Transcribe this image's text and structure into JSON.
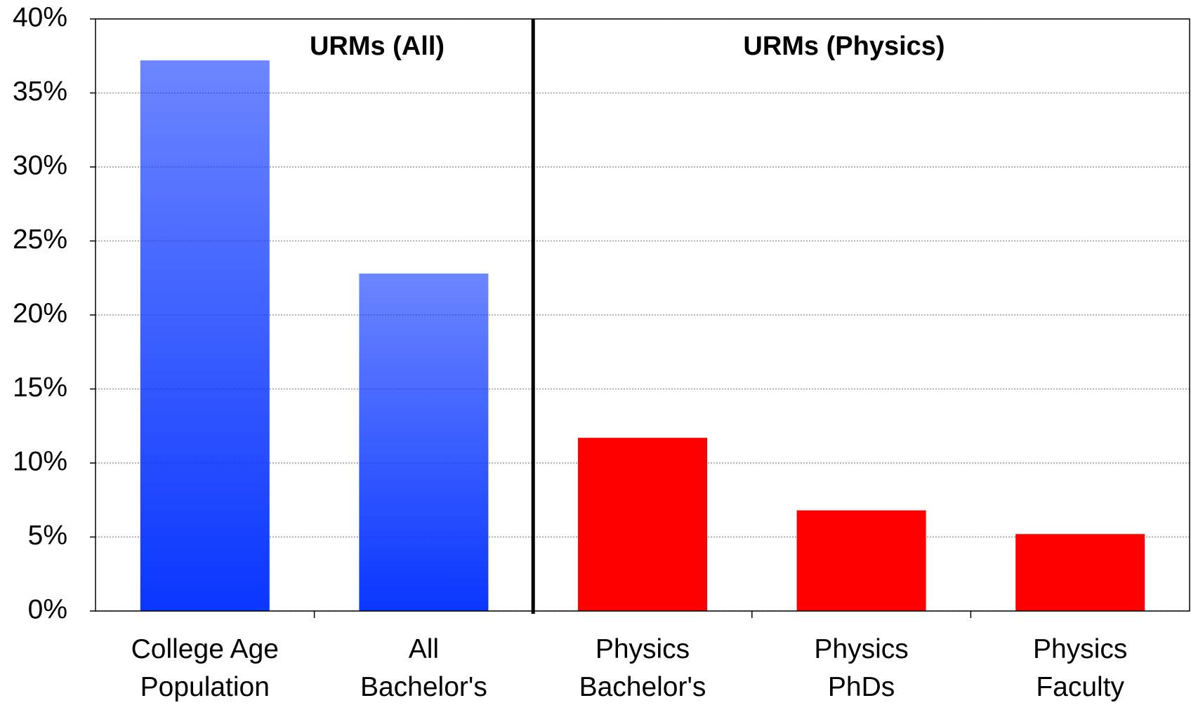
{
  "chart_data": {
    "type": "bar",
    "categories": [
      "College Age\nPopulation",
      "All\nBachelor's",
      "Physics\nBachelor's",
      "Physics\nPhDs",
      "Physics\nFaculty"
    ],
    "values": [
      37.2,
      22.8,
      11.7,
      6.8,
      5.2
    ],
    "colors": [
      "#0a36ff",
      "#0a36ff",
      "#ff0000",
      "#ff0000",
      "#ff0000"
    ],
    "gradient": [
      true,
      true,
      false,
      false,
      false
    ],
    "ylim": [
      0,
      40
    ],
    "yticks": [
      {
        "value": 0,
        "label": "0%"
      },
      {
        "value": 5,
        "label": "5%"
      },
      {
        "value": 10,
        "label": "10%"
      },
      {
        "value": 15,
        "label": "15%"
      },
      {
        "value": 20,
        "label": "20%"
      },
      {
        "value": 25,
        "label": "25%"
      },
      {
        "value": 30,
        "label": "30%"
      },
      {
        "value": 35,
        "label": "35%"
      },
      {
        "value": 40,
        "label": "40%"
      }
    ],
    "grid": true,
    "annotations": [
      {
        "text": "URMs (All)",
        "color": "#0a1eff"
      },
      {
        "text": "URMs (Physics)",
        "color": "#ff0000"
      }
    ]
  }
}
